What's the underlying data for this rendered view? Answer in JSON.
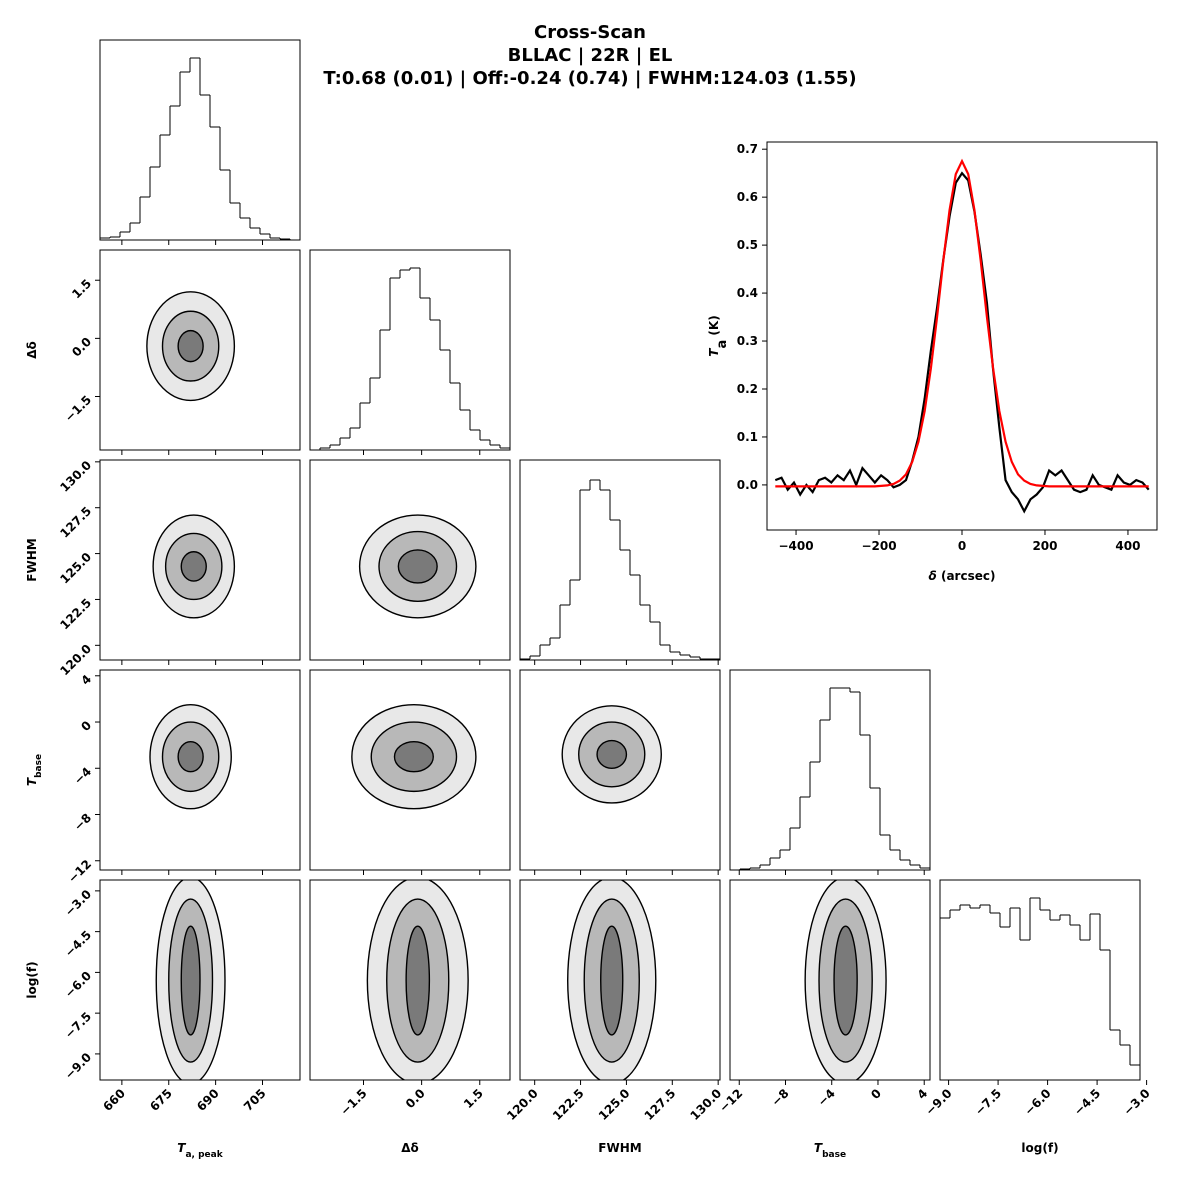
{
  "title": [
    "Cross-Scan",
    "BLLAC | 22R | EL",
    "T:0.68 (0.01) | Off:-0.24 (0.74) | FWHM:124.03 (1.55)"
  ],
  "chart_data": [
    {
      "type": "corner",
      "color": "#000000",
      "level_colors": [
        "#7a7a7a",
        "#b8b8b8",
        "#e8e8e8"
      ],
      "variables": [
        {
          "label": {
            "text": "T",
            "sub": "a, peak"
          },
          "lim": [
            653,
            717
          ],
          "ticks": [
            660,
            675,
            690,
            705
          ]
        },
        {
          "label": "Δδ",
          "lim": [
            -2.88,
            2.28
          ],
          "ticks": [
            {
              "value": -1.5,
              "label": "−1.5"
            },
            {
              "value": 0,
              "label": "0.0"
            },
            1.5
          ]
        },
        {
          "label": "FWHM",
          "lim": [
            119.2,
            130.1
          ],
          "ticks": [
            {
              "value": 120,
              "label": "120.0"
            },
            122.5,
            {
              "value": 125,
              "label": "125.0"
            },
            127.5,
            {
              "value": 130,
              "label": "130.0"
            }
          ]
        },
        {
          "label": {
            "text": "T",
            "sub": "base"
          },
          "lim": [
            -12.8,
            4.5
          ],
          "ticks": [
            {
              "value": -12,
              "label": "−12"
            },
            {
              "value": -8,
              "label": "−8"
            },
            {
              "value": -4,
              "label": "−4"
            },
            0,
            4
          ]
        },
        {
          "label": "log(f)",
          "lim": [
            -9.26,
            -3.2
          ],
          "ylim": [
            -9.96,
            -2.6
          ],
          "ticks": [
            {
              "value": -9,
              "label": "−9.0"
            },
            {
              "value": -7.5,
              "label": "−7.5"
            },
            {
              "value": -6,
              "label": "−6.0"
            },
            {
              "value": -4.5,
              "label": "−4.5"
            },
            {
              "value": -3,
              "label": "−3.0"
            }
          ]
        }
      ],
      "histograms": [
        {
          "ylim": [
            0,
            200
          ],
          "bins": [
            653,
            656.2,
            659.4,
            662.6,
            665.8,
            669,
            672.2,
            675.4,
            678.6,
            681.8,
            685,
            688.2,
            691.4,
            694.6,
            697.8,
            701,
            704.2,
            707.4,
            710.6,
            713.8,
            717
          ],
          "values": [
            2,
            3,
            8,
            17,
            43,
            73,
            105,
            134,
            168,
            182,
            145,
            113,
            70,
            37,
            22,
            12,
            6,
            2,
            1,
            0
          ]
        },
        {
          "ylim": [
            0,
            200
          ],
          "bins": [
            -2.88,
            -2.622,
            -2.364,
            -2.106,
            -1.848,
            -1.59,
            -1.332,
            -1.074,
            -0.816,
            -0.558,
            -0.3,
            -0.042,
            0.216,
            0.474,
            0.732,
            0.99,
            1.248,
            1.506,
            1.764,
            2.022,
            2.28
          ],
          "values": [
            0,
            2,
            5,
            12,
            22,
            47,
            72,
            120,
            172,
            180,
            182,
            152,
            130,
            100,
            67,
            40,
            20,
            10,
            5,
            2
          ]
        },
        {
          "ylim": [
            0,
            200
          ],
          "bins": [
            119.2,
            119.745,
            120.29,
            120.835,
            121.38,
            121.925,
            122.47,
            123.015,
            123.56,
            124.105,
            124.65,
            125.195,
            125.74,
            126.285,
            126.83,
            127.375,
            127.92,
            128.465,
            129.01,
            129.555,
            130.1
          ],
          "values": [
            1,
            4,
            15,
            22,
            55,
            80,
            170,
            180,
            170,
            140,
            110,
            85,
            55,
            38,
            15,
            8,
            5,
            3,
            1,
            1
          ]
        },
        {
          "ylim": [
            0,
            200
          ],
          "bins": [
            -12.8,
            -11.935,
            -11.07,
            -10.205,
            -9.34,
            -8.475,
            -7.61,
            -6.745,
            -5.88,
            -5.015,
            -4.15,
            -3.285,
            -2.42,
            -1.555,
            -0.69,
            0.175,
            1.04,
            1.905,
            2.77,
            3.635,
            4.5
          ],
          "values": [
            0,
            1,
            2,
            5,
            12,
            20,
            42,
            73,
            108,
            150,
            182,
            182,
            178,
            135,
            82,
            35,
            20,
            10,
            5,
            2
          ]
        },
        {
          "ylim": [
            0,
            200
          ],
          "bins": [
            -9.26,
            -8.957,
            -8.654,
            -8.351,
            -8.048,
            -7.745,
            -7.442,
            -7.139,
            -6.836,
            -6.533,
            -6.23,
            -5.927,
            -5.624,
            -5.321,
            -5.018,
            -4.715,
            -4.412,
            -4.109,
            -3.806,
            -3.503,
            -3.2
          ],
          "values": [
            162,
            170,
            175,
            172,
            175,
            167,
            153,
            172,
            140,
            182,
            170,
            160,
            165,
            155,
            140,
            166,
            130,
            50,
            35,
            15
          ]
        }
      ],
      "pairs": [
        [
          {
            "center": [
              682,
              -0.2
            ],
            "levels": [
              [
                4,
                0.4
              ],
              [
                9,
                0.9
              ],
              [
                14,
                1.4
              ]
            ]
          }
        ],
        [
          {
            "center": [
              683,
              124.3
            ],
            "levels": [
              [
                4,
                0.8
              ],
              [
                9,
                1.8
              ],
              [
                13,
                2.8
              ]
            ]
          },
          {
            "center": [
              -0.1,
              124.3
            ],
            "levels": [
              [
                0.5,
                0.9
              ],
              [
                1.0,
                1.9
              ],
              [
                1.5,
                2.8
              ]
            ]
          }
        ],
        [
          {
            "center": [
              682,
              -3
            ],
            "levels": [
              [
                4,
                1.3
              ],
              [
                9,
                3
              ],
              [
                13,
                4.5
              ]
            ]
          },
          {
            "center": [
              -0.2,
              -3
            ],
            "levels": [
              [
                0.5,
                1.3
              ],
              [
                1.1,
                3
              ],
              [
                1.6,
                4.5
              ]
            ]
          },
          {
            "center": [
              124.2,
              -2.8
            ],
            "levels": [
              [
                0.8,
                1.2
              ],
              [
                1.8,
                2.8
              ],
              [
                2.7,
                4.2
              ]
            ]
          }
        ],
        [
          {
            "center": [
              682,
              -6.3
            ],
            "levels": [
              [
                3,
                2
              ],
              [
                7,
                3
              ],
              [
                11,
                3.8
              ]
            ]
          },
          {
            "center": [
              -0.1,
              -6.3
            ],
            "levels": [
              [
                0.3,
                2
              ],
              [
                0.8,
                3
              ],
              [
                1.3,
                3.8
              ]
            ]
          },
          {
            "center": [
              124.2,
              -6.3
            ],
            "levels": [
              [
                0.6,
                2
              ],
              [
                1.5,
                3
              ],
              [
                2.4,
                3.8
              ]
            ]
          },
          {
            "center": [
              -2.8,
              -6.3
            ],
            "levels": [
              [
                1,
                2
              ],
              [
                2.3,
                3
              ],
              [
                3.5,
                3.8
              ]
            ]
          }
        ]
      ]
    },
    {
      "type": "line",
      "x_label": {
        "text": "δ",
        "rest": " (arcsec)"
      },
      "y_label": {
        "text": "T",
        "sub": "a",
        "rest": " (K)"
      },
      "xlim": [
        -470,
        470
      ],
      "ylim": [
        -0.094,
        0.715
      ],
      "xticks": [
        {
          "value": -400,
          "label": "−400"
        },
        {
          "value": -200,
          "label": "−200"
        },
        0,
        200,
        400
      ],
      "yticks": [
        {
          "value": 0,
          "label": "0.0"
        },
        0.1,
        0.2,
        0.3,
        0.4,
        0.5,
        0.6,
        0.7
      ],
      "x": [
        -450,
        -435,
        -420,
        -405,
        -390,
        -375,
        -360,
        -345,
        -330,
        -315,
        -300,
        -285,
        -270,
        -255,
        -240,
        -225,
        -210,
        -195,
        -180,
        -165,
        -150,
        -135,
        -120,
        -105,
        -90,
        -75,
        -60,
        -45,
        -30,
        -15,
        0,
        15,
        30,
        45,
        60,
        75,
        90,
        105,
        120,
        135,
        150,
        165,
        180,
        195,
        210,
        225,
        240,
        255,
        270,
        285,
        300,
        315,
        330,
        345,
        360,
        375,
        390,
        405,
        420,
        435,
        450
      ],
      "series": [
        {
          "color": "#000000",
          "values": [
            0.01,
            0.015,
            -0.01,
            0.005,
            -0.02,
            0.0,
            -0.015,
            0.01,
            0.015,
            0.005,
            0.02,
            0.01,
            0.03,
            0.0,
            0.035,
            0.02,
            0.005,
            0.02,
            0.01,
            -0.005,
            0.0,
            0.01,
            0.05,
            0.1,
            0.18,
            0.28,
            0.37,
            0.47,
            0.56,
            0.63,
            0.65,
            0.635,
            0.57,
            0.48,
            0.38,
            0.24,
            0.12,
            0.01,
            -0.015,
            -0.03,
            -0.055,
            -0.03,
            -0.02,
            -0.005,
            0.03,
            0.02,
            0.03,
            0.01,
            -0.01,
            -0.015,
            -0.01,
            0.02,
            0.0,
            -0.005,
            -0.01,
            0.02,
            0.005,
            0.0,
            0.01,
            0.005,
            -0.01
          ]
        },
        {
          "color": "#ff0000",
          "values": [
            -0.003,
            -0.003,
            -0.003,
            -0.003,
            -0.003,
            -0.003,
            -0.003,
            -0.003,
            -0.003,
            -0.003,
            -0.003,
            -0.003,
            -0.003,
            -0.003,
            -0.003,
            -0.003,
            -0.003,
            -0.002,
            -0.001,
            0.002,
            0.009,
            0.022,
            0.048,
            0.09,
            0.154,
            0.243,
            0.351,
            0.468,
            0.573,
            0.648,
            0.675,
            0.648,
            0.573,
            0.468,
            0.351,
            0.243,
            0.154,
            0.09,
            0.048,
            0.022,
            0.009,
            0.002,
            -0.001,
            -0.002,
            -0.003,
            -0.003,
            -0.003,
            -0.003,
            -0.003,
            -0.003,
            -0.003,
            -0.003,
            -0.003,
            -0.003,
            -0.003,
            -0.003,
            -0.003,
            -0.003,
            -0.003,
            -0.003,
            -0.003
          ]
        }
      ]
    }
  ]
}
